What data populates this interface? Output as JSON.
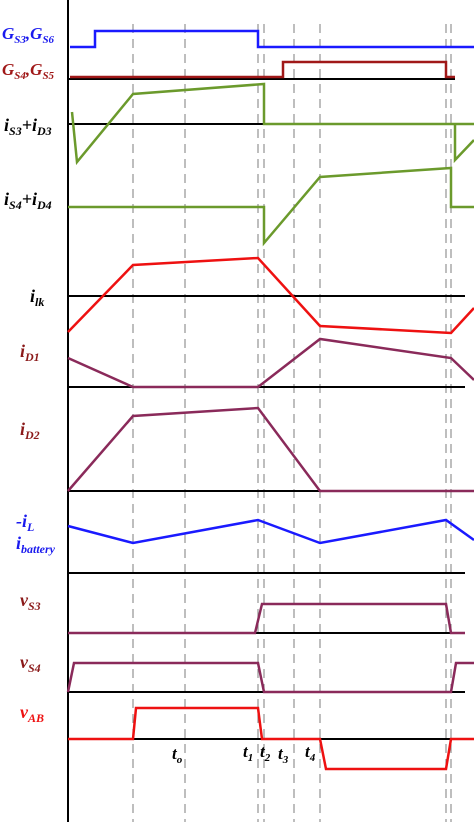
{
  "labels": {
    "gs36": {
      "main": "G",
      "sub1": "S3",
      "sep": ",",
      "main2": "G",
      "sub2": "S6"
    },
    "gs45": {
      "main": "G",
      "sub1": "S4",
      "sep": ",",
      "main2": "G",
      "sub2": "S5"
    },
    "is3": {
      "a": "i",
      "asub": "S3",
      "plus": "+",
      "b": "i",
      "bsub": "D3"
    },
    "is4": {
      "a": "i",
      "asub": "S4",
      "plus": "+",
      "b": "i",
      "bsub": "D4"
    },
    "ilk": {
      "a": "i",
      "asub": "lk"
    },
    "id1": {
      "a": "i",
      "asub": "D1"
    },
    "id2": {
      "a": "i",
      "asub": "D2"
    },
    "il": {
      "a": "-i",
      "asub": "L"
    },
    "ibat": {
      "a": "i",
      "asub": "battery"
    },
    "vs3": {
      "a": "v",
      "asub": "S3"
    },
    "vs4": {
      "a": "v",
      "asub": "S4"
    },
    "vab": {
      "a": "v",
      "asub": "AB"
    }
  },
  "time_marks": {
    "t0": {
      "a": "t",
      "sub": "o"
    },
    "t1": {
      "a": "t",
      "sub": "1"
    },
    "t2": {
      "a": "t",
      "sub": "2"
    },
    "t3": {
      "a": "t",
      "sub": "3"
    },
    "t4": {
      "a": "t",
      "sub": "4"
    }
  },
  "colors": {
    "blue": "#1a1aff",
    "darkred": "#a01818",
    "green": "#6b9a2c",
    "red": "#ee1111",
    "purple": "#8a2a5a",
    "label_red": "#8b1a1a",
    "label_blue": "#1a1aee",
    "axis": "#000000",
    "dash": "#888888"
  }
}
